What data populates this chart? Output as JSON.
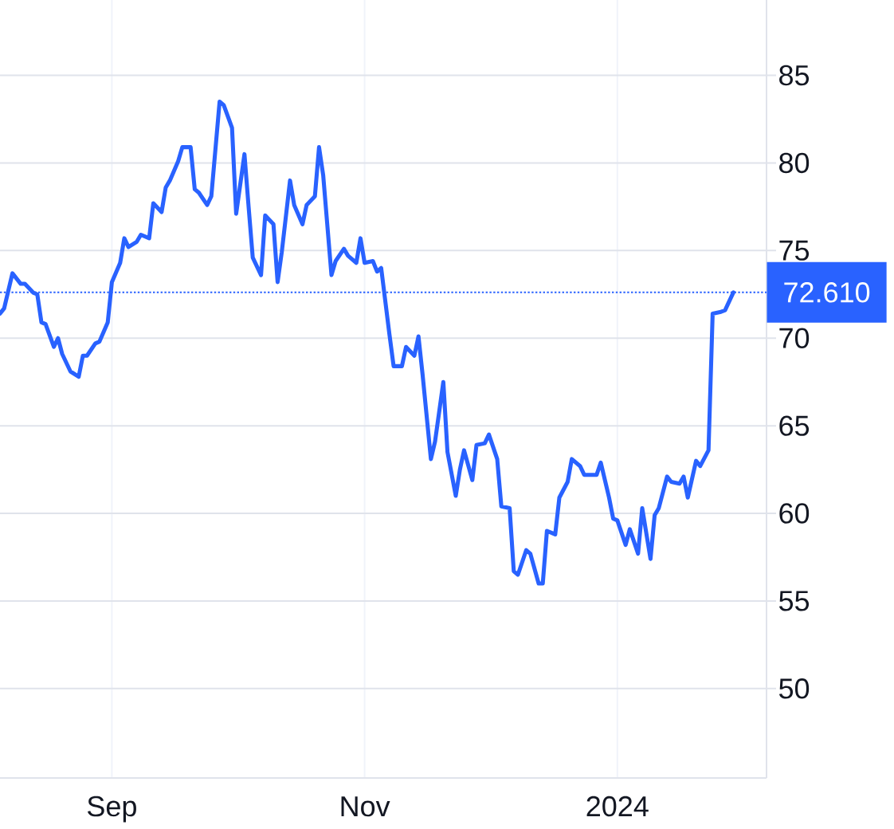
{
  "chart_data": {
    "type": "line",
    "x": [
      "2023-08-05",
      "2023-08-06",
      "2023-08-08",
      "2023-08-10",
      "2023-08-11",
      "2023-08-13",
      "2023-08-14",
      "2023-08-15",
      "2023-08-16",
      "2023-08-18",
      "2023-08-19",
      "2023-08-20",
      "2023-08-22",
      "2023-08-24",
      "2023-08-25",
      "2023-08-26",
      "2023-08-28",
      "2023-08-29",
      "2023-08-31",
      "2023-09-01",
      "2023-09-03",
      "2023-09-04",
      "2023-09-05",
      "2023-09-07",
      "2023-09-08",
      "2023-09-10",
      "2023-09-11",
      "2023-09-13",
      "2023-09-14",
      "2023-09-15",
      "2023-09-17",
      "2023-09-18",
      "2023-09-20",
      "2023-09-21",
      "2023-09-22",
      "2023-09-24",
      "2023-09-25",
      "2023-09-27",
      "2023-09-28",
      "2023-09-30",
      "2023-10-01",
      "2023-10-03",
      "2023-10-04",
      "2023-10-05",
      "2023-10-07",
      "2023-10-08",
      "2023-10-10",
      "2023-10-11",
      "2023-10-12",
      "2023-10-14",
      "2023-10-15",
      "2023-10-17",
      "2023-10-18",
      "2023-10-20",
      "2023-10-21",
      "2023-10-22",
      "2023-10-24",
      "2023-10-25",
      "2023-10-27",
      "2023-10-28",
      "2023-10-30",
      "2023-10-31",
      "2023-11-01",
      "2023-11-03",
      "2023-11-04",
      "2023-11-05",
      "2023-11-07",
      "2023-11-08",
      "2023-11-10",
      "2023-11-11",
      "2023-11-13",
      "2023-11-14",
      "2023-11-15",
      "2023-11-17",
      "2023-11-18",
      "2023-11-20",
      "2023-11-21",
      "2023-11-23",
      "2023-11-24",
      "2023-11-25",
      "2023-11-27",
      "2023-11-28",
      "2023-11-30",
      "2023-12-01",
      "2023-12-03",
      "2023-12-04",
      "2023-12-06",
      "2023-12-07",
      "2023-12-08",
      "2023-12-10",
      "2023-12-11",
      "2023-12-13",
      "2023-12-14",
      "2023-12-15",
      "2023-12-17",
      "2023-12-18",
      "2023-12-20",
      "2023-12-21",
      "2023-12-23",
      "2023-12-24",
      "2023-12-25",
      "2023-12-27",
      "2023-12-28",
      "2023-12-30",
      "2023-12-31",
      "2024-01-01",
      "2024-01-03",
      "2024-01-04",
      "2024-01-06",
      "2024-01-07",
      "2024-01-09",
      "2024-01-10",
      "2024-01-11",
      "2024-01-13",
      "2024-01-14",
      "2024-01-16",
      "2024-01-17",
      "2024-01-18",
      "2024-01-20",
      "2024-01-21",
      "2024-01-23",
      "2024-01-24",
      "2024-01-26",
      "2024-01-27",
      "2024-01-29"
    ],
    "values": [
      71.4,
      71.7,
      73.7,
      73.1,
      73.1,
      72.6,
      72.5,
      70.9,
      70.8,
      69.5,
      70.0,
      69.1,
      68.1,
      67.8,
      69.0,
      69.0,
      69.7,
      69.8,
      70.9,
      73.2,
      74.3,
      75.7,
      75.2,
      75.5,
      75.9,
      75.7,
      77.7,
      77.2,
      78.6,
      79.0,
      80.1,
      80.9,
      80.9,
      78.5,
      78.3,
      77.6,
      78.1,
      83.5,
      83.3,
      82.0,
      77.1,
      80.5,
      77.5,
      74.6,
      73.6,
      77.0,
      76.5,
      73.2,
      74.9,
      79.0,
      77.6,
      76.5,
      77.6,
      78.1,
      80.9,
      79.3,
      73.6,
      74.4,
      75.1,
      74.7,
      74.3,
      75.7,
      74.3,
      74.4,
      73.8,
      74.0,
      70.2,
      68.4,
      68.4,
      69.5,
      69.0,
      70.1,
      67.9,
      63.1,
      64.1,
      67.5,
      63.5,
      61.0,
      62.5,
      63.6,
      61.9,
      63.9,
      64.0,
      64.5,
      63.1,
      60.4,
      60.3,
      56.7,
      56.5,
      57.9,
      57.7,
      56.0,
      56.0,
      59.0,
      58.8,
      60.9,
      61.8,
      63.1,
      62.7,
      62.2,
      62.2,
      62.2,
      62.9,
      60.9,
      59.7,
      59.6,
      58.2,
      59.1,
      57.7,
      60.3,
      57.4,
      59.9,
      60.3,
      62.1,
      61.8,
      61.7,
      62.1,
      60.9,
      63.0,
      62.7,
      63.6,
      71.4,
      71.5,
      71.6,
      72.61
    ],
    "color": "#2962ff",
    "xlim": [
      "2023-08-05",
      "2024-02-06"
    ],
    "ylim": [
      44.9,
      89.3
    ],
    "xticks": [
      {
        "value": "2023-09-01",
        "label": "Sep"
      },
      {
        "value": "2023-11-01",
        "label": "Nov"
      },
      {
        "value": "2024-01-01",
        "label": "2024"
      }
    ],
    "yticks": [
      50,
      55,
      60,
      65,
      70,
      75,
      80,
      85
    ],
    "grid": true,
    "ref_lines": [
      {
        "axis": "y",
        "value": 72.61,
        "label": "72.610",
        "color": "#2962ff",
        "line_style": "dotted"
      }
    ]
  }
}
